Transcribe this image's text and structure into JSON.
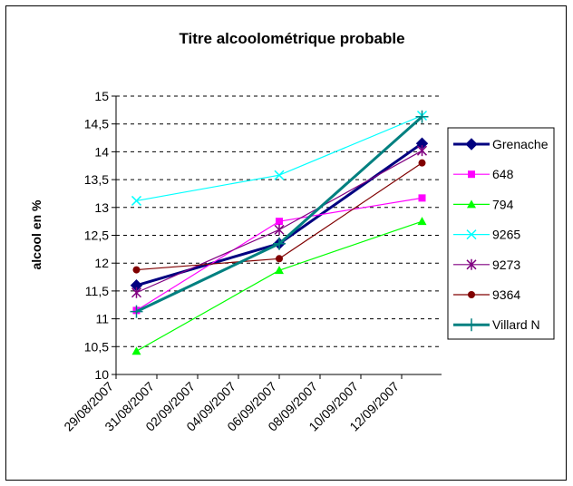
{
  "chart_data": {
    "type": "line",
    "title": "Titre alcoolométrique probable",
    "ylabel": "alcool en %",
    "xlabel": "",
    "ylim": [
      10,
      15
    ],
    "y_ticks": [
      "10",
      "10,5",
      "11",
      "11,5",
      "12",
      "12,5",
      "13",
      "13,5",
      "14",
      "14,5",
      "15"
    ],
    "x_tick_labels": [
      "29/08/2007",
      "31/08/2007",
      "02/09/2007",
      "04/09/2007",
      "06/09/2007",
      "08/09/2007",
      "10/09/2007",
      "12/09/2007"
    ],
    "x_dates": [
      "2007-08-30",
      "2007-09-06",
      "2007-09-13"
    ],
    "grid": "horizontal dashed",
    "legend_position": "right",
    "series": [
      {
        "name": "Grenache",
        "values": [
          11.6,
          12.35,
          14.15
        ],
        "color": "#000080",
        "marker": "diamond"
      },
      {
        "name": "648",
        "values": [
          11.15,
          12.75,
          13.17
        ],
        "color": "#FF00FF",
        "marker": "square"
      },
      {
        "name": "794",
        "values": [
          10.42,
          11.87,
          12.75
        ],
        "color": "#00FF00",
        "marker": "triangle"
      },
      {
        "name": "9265",
        "values": [
          13.12,
          13.58,
          14.65
        ],
        "color": "#00FFFF",
        "marker": "x"
      },
      {
        "name": "9273",
        "values": [
          11.47,
          12.6,
          14.02
        ],
        "color": "#800080",
        "marker": "asterisk"
      },
      {
        "name": "9364",
        "values": [
          11.88,
          12.08,
          13.8
        ],
        "color": "#800000",
        "marker": "circle"
      },
      {
        "name": "Villard N",
        "values": [
          11.13,
          12.35,
          14.63
        ],
        "color": "#008080",
        "marker": "plus"
      }
    ]
  }
}
